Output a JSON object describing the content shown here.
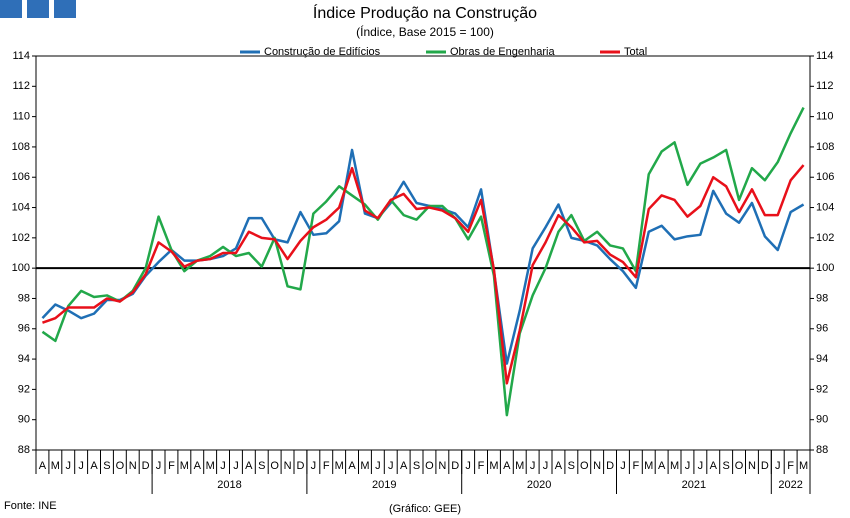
{
  "chart_data": {
    "type": "line",
    "title": "Índice Produção na Construção",
    "subtitle": "(Índice, Base 2015 = 100)",
    "source": "Fonte: INE",
    "credit": "(Gráfico: GEE)",
    "categories": [
      "A",
      "M",
      "J",
      "J",
      "A",
      "S",
      "O",
      "N",
      "D",
      "J",
      "F",
      "M",
      "A",
      "M",
      "J",
      "J",
      "A",
      "S",
      "O",
      "N",
      "D",
      "J",
      "F",
      "M",
      "A",
      "M",
      "J",
      "J",
      "A",
      "S",
      "O",
      "N",
      "D",
      "J",
      "F",
      "M",
      "A",
      "M",
      "J",
      "J",
      "A",
      "S",
      "O",
      "N",
      "D",
      "J",
      "F",
      "M",
      "A",
      "M",
      "J",
      "J",
      "A",
      "S",
      "O",
      "N",
      "D",
      "J",
      "F",
      "M"
    ],
    "year_groups": [
      {
        "label": null,
        "count": 9
      },
      {
        "label": "2018",
        "count": 12
      },
      {
        "label": "2019",
        "count": 12
      },
      {
        "label": "2020",
        "count": 12
      },
      {
        "label": "2021",
        "count": 12
      },
      {
        "label": "2022",
        "count": 3
      }
    ],
    "ylim": [
      88,
      114
    ],
    "yticks": [
      88,
      90,
      92,
      94,
      96,
      98,
      100,
      102,
      104,
      106,
      108,
      110,
      112,
      114
    ],
    "reference_line": 100,
    "legend": "top",
    "series": [
      {
        "name": "Construção de Edifícios",
        "color": "#1f6fb5",
        "values": [
          96.7,
          97.6,
          97.2,
          96.7,
          97.0,
          97.9,
          97.9,
          98.3,
          99.5,
          100.4,
          101.2,
          100.5,
          100.5,
          100.6,
          100.8,
          101.3,
          103.3,
          103.3,
          101.9,
          101.7,
          103.7,
          102.2,
          102.3,
          103.1,
          107.8,
          103.6,
          103.3,
          104.3,
          105.7,
          104.3,
          104.1,
          103.9,
          103.6,
          102.7,
          105.2,
          99.8,
          93.7,
          97.2,
          101.3,
          102.7,
          104.2,
          102.0,
          101.8,
          101.5,
          100.6,
          99.8,
          98.7,
          102.4,
          102.8,
          101.9,
          102.1,
          102.2,
          105.1,
          103.6,
          103.0,
          104.3,
          102.1,
          101.2,
          103.7,
          104.2
        ]
      },
      {
        "name": "Obras de Engenharia",
        "color": "#22a84a",
        "values": [
          95.8,
          95.2,
          97.5,
          98.5,
          98.1,
          98.2,
          97.8,
          98.5,
          100.0,
          103.4,
          101.2,
          99.8,
          100.5,
          100.8,
          101.4,
          100.8,
          101.0,
          100.1,
          102.0,
          98.8,
          98.6,
          103.6,
          104.4,
          105.4,
          104.8,
          104.2,
          103.2,
          104.5,
          103.5,
          103.2,
          104.1,
          104.1,
          103.3,
          101.9,
          103.4,
          99.5,
          90.3,
          95.7,
          98.2,
          100.0,
          102.4,
          103.5,
          101.8,
          102.4,
          101.5,
          101.3,
          99.8,
          106.2,
          107.7,
          108.3,
          105.5,
          106.9,
          107.3,
          107.8,
          104.5,
          106.6,
          105.8,
          107.0,
          108.9,
          110.6
        ]
      },
      {
        "name": "Total",
        "color": "#e8101a",
        "values": [
          96.4,
          96.7,
          97.4,
          97.4,
          97.4,
          98.0,
          97.8,
          98.4,
          99.6,
          101.7,
          101.1,
          100.1,
          100.5,
          100.6,
          101.0,
          101.0,
          102.4,
          102.0,
          101.9,
          100.6,
          101.8,
          102.7,
          103.2,
          104.0,
          106.6,
          103.8,
          103.3,
          104.5,
          104.9,
          103.9,
          104.0,
          103.8,
          103.3,
          102.4,
          104.5,
          99.9,
          92.4,
          95.9,
          100.2,
          101.7,
          103.5,
          102.7,
          101.7,
          101.8,
          100.9,
          100.4,
          99.4,
          103.9,
          104.8,
          104.5,
          103.4,
          104.1,
          106.0,
          105.4,
          103.7,
          105.2,
          103.5,
          103.5,
          105.8,
          106.8
        ]
      }
    ]
  }
}
